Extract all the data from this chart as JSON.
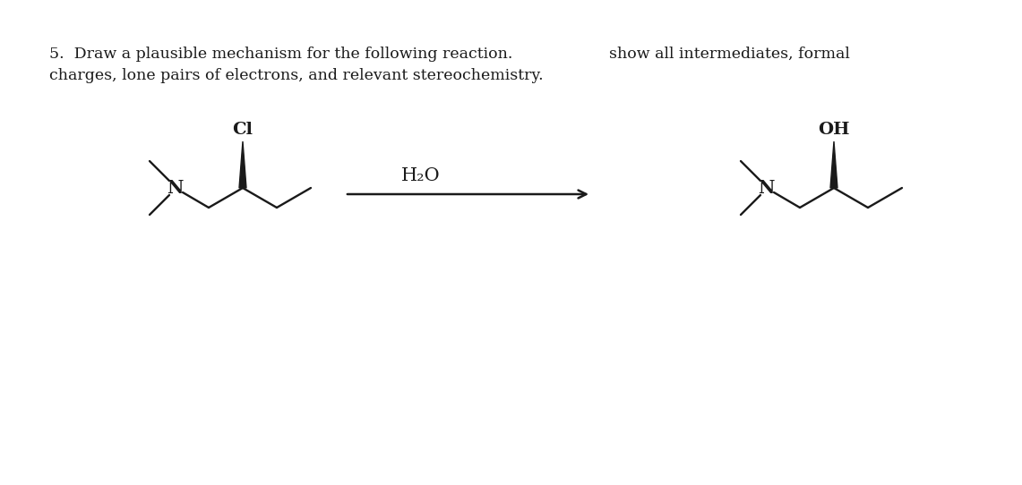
{
  "title_left": "5.  Draw a plausible mechanism for the following reaction.",
  "title_right": "show all intermediates, formal",
  "subtitle": "charges, lone pairs of electrons, and relevant stereochemistry.",
  "reagent": "H₂O",
  "reactant_label_N": "N",
  "reactant_label_Cl": "Cl",
  "product_label_N": "N",
  "product_label_OH": "OH",
  "bg_color": "#ffffff",
  "text_color": "#1a1a1a",
  "line_color": "#1a1a1a",
  "font_size_title": 12.5,
  "font_size_atom": 13.5,
  "font_size_reagent": 15
}
